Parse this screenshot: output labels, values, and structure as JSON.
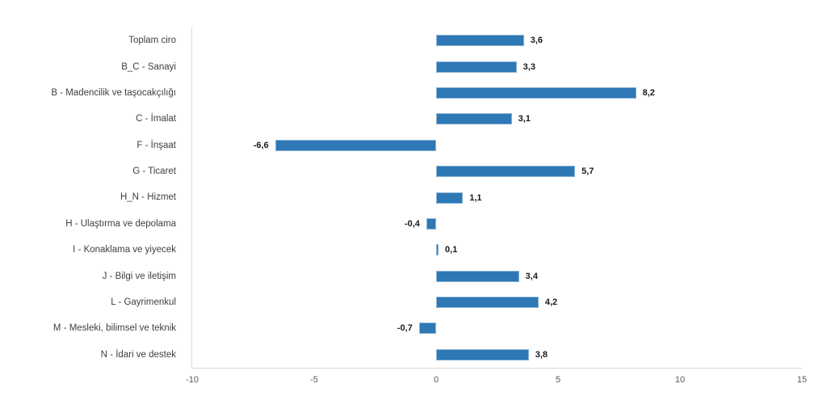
{
  "chart_data": {
    "type": "bar",
    "orientation": "horizontal",
    "title": "",
    "categories": [
      "Toplam ciro",
      "B_C - Sanayi",
      "B - Madencilik ve taşocakçılığı",
      "C - İmalat",
      "F - İnşaat",
      "G - Ticaret",
      "H_N - Hizmet",
      "H - Ulaştırma ve depolama",
      "I - Konaklama ve yiyecek",
      "J - Bilgi ve iletişim",
      "L - Gayrimenkul",
      "M - Mesleki, bilimsel ve teknik",
      "N - İdari ve destek"
    ],
    "values": [
      3.6,
      3.3,
      8.2,
      3.1,
      -6.6,
      5.7,
      1.1,
      -0.4,
      0.1,
      3.4,
      4.2,
      -0.7,
      3.8
    ],
    "value_labels": [
      "3,6",
      "3,3",
      "8,2",
      "3,1",
      "-6,6",
      "5,7",
      "1,1",
      "-0,4",
      "0,1",
      "3,4",
      "4,2",
      "-0,7",
      "3,8"
    ],
    "xlim": [
      -10,
      15
    ],
    "x_ticks": [
      -10,
      -5,
      0,
      5,
      10,
      15
    ],
    "x_tick_labels": [
      "-10",
      "-5",
      "0",
      "5",
      "10",
      "15"
    ],
    "grid": false,
    "legend": null,
    "colors": {
      "bar_fill": "#2E78B5",
      "axis_line": "#D9D9D9",
      "category_text": "#404040",
      "tick_text": "#595959",
      "value_text": "#1A1A1A"
    }
  }
}
